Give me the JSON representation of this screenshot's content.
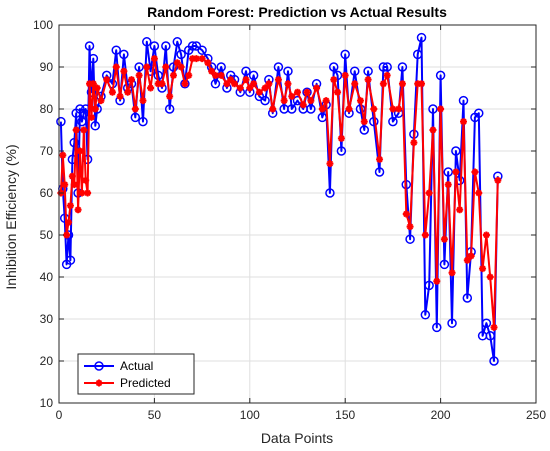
{
  "chart_data": {
    "type": "line",
    "title": "Random Forest: Prediction vs Actual Results",
    "xlabel": "Data Points",
    "ylabel": "Inhibition Efficiency (%)",
    "xlim": [
      0,
      250
    ],
    "ylim": [
      10,
      100
    ],
    "xticks": [
      0,
      50,
      100,
      150,
      200,
      250
    ],
    "yticks": [
      10,
      20,
      30,
      40,
      50,
      60,
      70,
      80,
      90,
      100
    ],
    "grid": true,
    "legend_position": "bottom-left",
    "series": [
      {
        "name": "Actual",
        "color": "#0000ff",
        "marker": "circle",
        "x": [
          1,
          2,
          3,
          4,
          5,
          6,
          7,
          8,
          9,
          10,
          11,
          12,
          13,
          14,
          15,
          16,
          17,
          18,
          19,
          20,
          22,
          25,
          28,
          30,
          32,
          34,
          36,
          38,
          40,
          42,
          44,
          46,
          48,
          50,
          52,
          54,
          56,
          58,
          60,
          62,
          64,
          66,
          68,
          70,
          72,
          75,
          78,
          80,
          82,
          85,
          88,
          90,
          92,
          95,
          98,
          100,
          102,
          105,
          108,
          110,
          112,
          115,
          118,
          120,
          122,
          125,
          128,
          130,
          132,
          135,
          138,
          140,
          142,
          144,
          146,
          148,
          150,
          152,
          155,
          158,
          160,
          162,
          165,
          168,
          170,
          172,
          175,
          178,
          180,
          182,
          184,
          186,
          188,
          190,
          192,
          194,
          196,
          198,
          200,
          202,
          204,
          206,
          208,
          210,
          212,
          214,
          216,
          218,
          220,
          222,
          224,
          226,
          228,
          230
        ],
        "y": [
          77,
          61,
          54,
          43,
          50,
          44,
          68,
          72,
          79,
          60,
          80,
          77,
          79,
          80,
          68,
          95,
          84,
          92,
          76,
          80,
          83,
          88,
          86,
          94,
          82,
          93,
          85,
          86,
          78,
          90,
          77,
          96,
          89,
          95,
          88,
          85,
          95,
          80,
          90,
          96,
          93,
          86,
          94,
          95,
          95,
          94,
          92,
          90,
          86,
          90,
          85,
          88,
          87,
          84,
          89,
          84,
          88,
          83,
          82,
          87,
          79,
          90,
          80,
          89,
          80,
          82,
          80,
          84,
          80,
          86,
          78,
          81,
          60,
          90,
          88,
          70,
          93,
          79,
          89,
          80,
          75,
          89,
          77,
          65,
          90,
          90,
          77,
          79,
          90,
          62,
          49,
          74,
          93,
          97,
          31,
          38,
          80,
          28,
          88,
          43,
          65,
          29,
          70,
          63,
          82,
          35,
          46,
          78,
          79,
          26,
          29,
          26,
          20,
          64
        ]
      },
      {
        "name": "Predicted",
        "color": "#ff0000",
        "marker": "asterisk",
        "x": [
          1,
          2,
          3,
          4,
          5,
          6,
          7,
          8,
          9,
          10,
          11,
          12,
          13,
          14,
          15,
          16,
          17,
          18,
          19,
          20,
          22,
          25,
          28,
          30,
          32,
          34,
          36,
          38,
          40,
          42,
          44,
          46,
          48,
          50,
          52,
          54,
          56,
          58,
          60,
          62,
          64,
          66,
          68,
          70,
          72,
          75,
          78,
          80,
          82,
          85,
          88,
          90,
          92,
          95,
          98,
          100,
          102,
          105,
          108,
          110,
          112,
          115,
          118,
          120,
          122,
          125,
          128,
          130,
          132,
          135,
          138,
          140,
          142,
          144,
          146,
          148,
          150,
          152,
          155,
          158,
          160,
          162,
          165,
          168,
          170,
          172,
          175,
          178,
          180,
          182,
          184,
          186,
          188,
          190,
          192,
          194,
          196,
          198,
          200,
          202,
          204,
          206,
          208,
          210,
          212,
          214,
          216,
          218,
          220,
          222,
          224,
          226,
          228,
          230
        ],
        "y": [
          60,
          69,
          62,
          50,
          53,
          57,
          64,
          62,
          75,
          56,
          70,
          60,
          75,
          63,
          60,
          86,
          78,
          86,
          80,
          85,
          82,
          87,
          84,
          90,
          83,
          89,
          84,
          87,
          80,
          88,
          82,
          90,
          85,
          92,
          86,
          86,
          90,
          83,
          88,
          91,
          90,
          86,
          88,
          92,
          92,
          92,
          91,
          89,
          88,
          88,
          86,
          87,
          86,
          85,
          87,
          85,
          86,
          84,
          85,
          86,
          80,
          87,
          82,
          86,
          83,
          84,
          81,
          84,
          82,
          85,
          80,
          82,
          67,
          87,
          84,
          73,
          88,
          80,
          86,
          82,
          77,
          87,
          80,
          68,
          86,
          88,
          80,
          80,
          86,
          55,
          52,
          72,
          86,
          86,
          50,
          60,
          75,
          39,
          80,
          49,
          62,
          41,
          65,
          56,
          77,
          44,
          45,
          65,
          60,
          42,
          50,
          40,
          28,
          63
        ]
      }
    ]
  }
}
